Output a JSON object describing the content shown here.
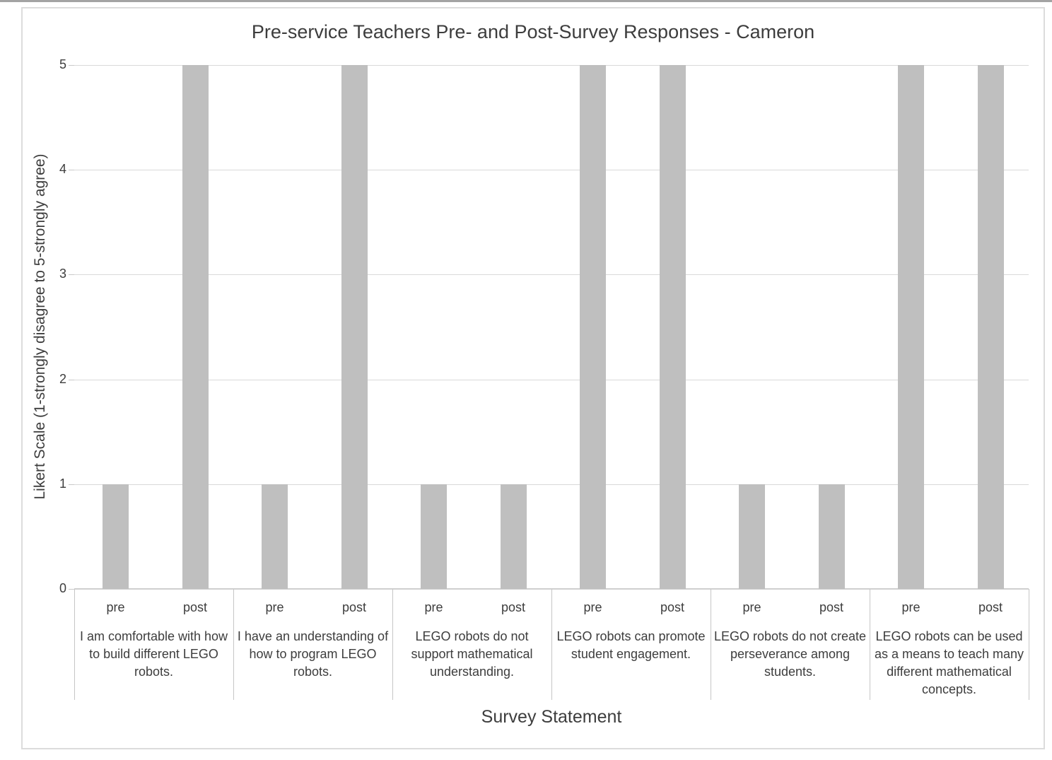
{
  "chart_data": {
    "type": "bar",
    "title": "Pre-service Teachers Pre- and Post-Survey Responses - Cameron",
    "xlabel": "Survey Statement",
    "ylabel": "Likert Scale (1-strongly disagree to 5-strongly agree)",
    "ylim": [
      0,
      5
    ],
    "yticks": [
      0,
      1,
      2,
      3,
      4,
      5
    ],
    "grid": true,
    "legend_position": "none",
    "bar_color": "#bfbfbf",
    "group_labels": [
      "pre",
      "post"
    ],
    "categories": [
      "I am comfortable with how to build different LEGO robots.",
      "I have an understanding of how to program LEGO robots.",
      "LEGO robots do not support mathematical understanding.",
      "LEGO robots can promote student engagement.",
      "LEGO robots do not create perseverance among students.",
      "LEGO robots can be used as a means to teach many different mathematical concepts."
    ],
    "series": [
      {
        "name": "pre",
        "values": [
          1,
          1,
          1,
          5,
          1,
          5
        ]
      },
      {
        "name": "post",
        "values": [
          5,
          5,
          1,
          5,
          1,
          5
        ]
      }
    ]
  },
  "colors": {
    "bar": "#bfbfbf",
    "gridline": "#d9d9d9",
    "text": "#3d3d3d",
    "frame_border": "#dcdcdc",
    "page_top_edge": "#a3a3a3"
  }
}
